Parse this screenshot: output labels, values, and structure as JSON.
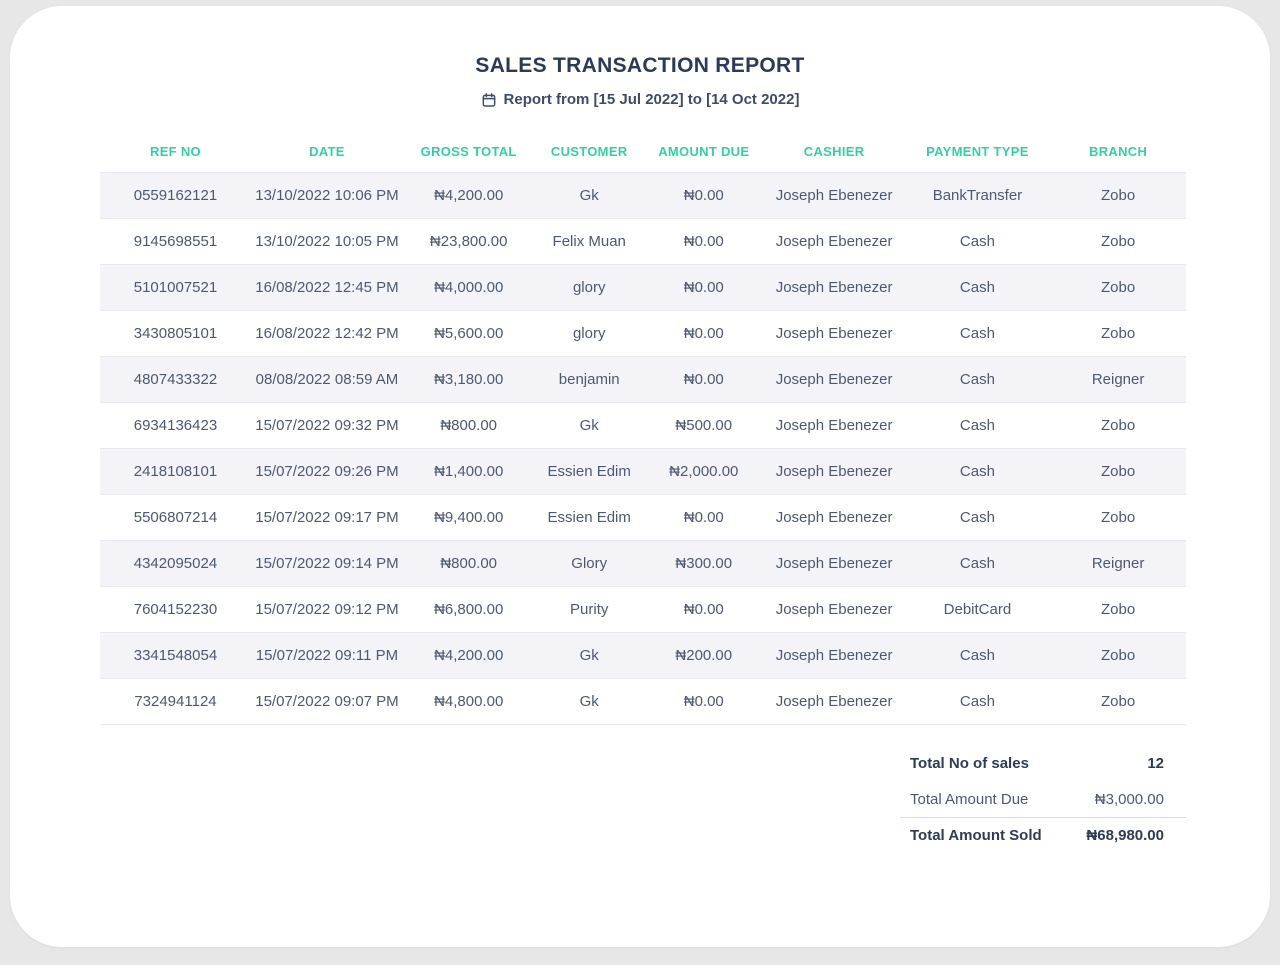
{
  "report": {
    "title": "SALES TRANSACTION REPORT",
    "subtitle": "Report from [15 Jul 2022] to [14 Oct 2022]"
  },
  "colors": {
    "header_accent": "#2fd3a2",
    "ref_link": "#8d7be0",
    "title_text": "#2b3a58",
    "body_text": "#4d5970",
    "stripe_bg": "#f4f4f8",
    "page_bg": "#e7e7e8"
  },
  "icons": {
    "calendar": "calendar-icon"
  },
  "table": {
    "columns": [
      "REF NO",
      "DATE",
      "GROSS TOTAL",
      "CUSTOMER",
      "AMOUNT DUE",
      "CASHIER",
      "PAYMENT TYPE",
      "BRANCH"
    ],
    "rows": [
      [
        "0559162121",
        "13/10/2022 10:06 PM",
        "₦4,200.00",
        "Gk",
        "₦0.00",
        "Joseph Ebenezer",
        "BankTransfer",
        "Zobo"
      ],
      [
        "9145698551",
        "13/10/2022 10:05 PM",
        "₦23,800.00",
        "Felix Muan",
        "₦0.00",
        "Joseph Ebenezer",
        "Cash",
        "Zobo"
      ],
      [
        "5101007521",
        "16/08/2022 12:45 PM",
        "₦4,000.00",
        "glory",
        "₦0.00",
        "Joseph Ebenezer",
        "Cash",
        "Zobo"
      ],
      [
        "3430805101",
        "16/08/2022 12:42 PM",
        "₦5,600.00",
        "glory",
        "₦0.00",
        "Joseph Ebenezer",
        "Cash",
        "Zobo"
      ],
      [
        "4807433322",
        "08/08/2022 08:59 AM",
        "₦3,180.00",
        "benjamin",
        "₦0.00",
        "Joseph Ebenezer",
        "Cash",
        "Reigner"
      ],
      [
        "6934136423",
        "15/07/2022 09:32 PM",
        "₦800.00",
        "Gk",
        "₦500.00",
        "Joseph Ebenezer",
        "Cash",
        "Zobo"
      ],
      [
        "2418108101",
        "15/07/2022 09:26 PM",
        "₦1,400.00",
        "Essien Edim",
        "₦2,000.00",
        "Joseph Ebenezer",
        "Cash",
        "Zobo"
      ],
      [
        "5506807214",
        "15/07/2022 09:17 PM",
        "₦9,400.00",
        "Essien Edim",
        "₦0.00",
        "Joseph Ebenezer",
        "Cash",
        "Zobo"
      ],
      [
        "4342095024",
        "15/07/2022 09:14 PM",
        "₦800.00",
        "Glory",
        "₦300.00",
        "Joseph Ebenezer",
        "Cash",
        "Reigner"
      ],
      [
        "7604152230",
        "15/07/2022 09:12 PM",
        "₦6,800.00",
        "Purity",
        "₦0.00",
        "Joseph Ebenezer",
        "DebitCard",
        "Zobo"
      ],
      [
        "3341548054",
        "15/07/2022 09:11 PM",
        "₦4,200.00",
        "Gk",
        "₦200.00",
        "Joseph Ebenezer",
        "Cash",
        "Zobo"
      ],
      [
        "7324941124",
        "15/07/2022 09:07 PM",
        "₦4,800.00",
        "Gk",
        "₦0.00",
        "Joseph Ebenezer",
        "Cash",
        "Zobo"
      ]
    ]
  },
  "summary": {
    "rows": [
      {
        "label": "Total No of sales",
        "value": "12"
      },
      {
        "label": "Total Amount Due",
        "value": "₦3,000.00"
      },
      {
        "label": "Total Amount Sold",
        "value": "₦68,980.00"
      }
    ]
  }
}
